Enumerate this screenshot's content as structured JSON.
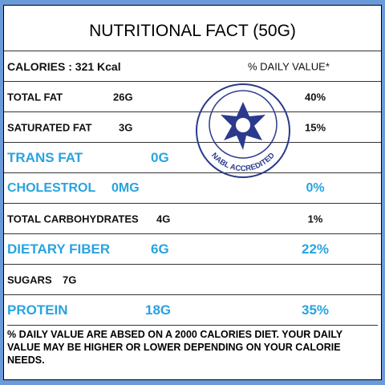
{
  "title": "NUTRITIONAL FACT (50G)",
  "header": {
    "calories": "CALORIES : 321 Kcal",
    "daily_value_heading": "% DAILY VALUE*"
  },
  "rows": [
    {
      "name": "TOTAL FAT",
      "amount": "26G",
      "daily_value": "40%"
    },
    {
      "name": "SATURATED FAT",
      "amount": "3G",
      "daily_value": "15%"
    },
    {
      "name": "TRANS FAT",
      "amount": "0G"
    },
    {
      "name": "CHOLESTROL",
      "amount": "0MG",
      "daily_value": "0%"
    },
    {
      "name": "TOTAL CARBOHYDRATES",
      "amount": "4G",
      "daily_value": "1%"
    },
    {
      "name": "DIETARY FIBER",
      "amount": "6G",
      "daily_value": "22%"
    },
    {
      "name": "SUGARS",
      "amount": "7G"
    },
    {
      "name": "PROTEIN",
      "amount": "18G",
      "daily_value": "35%"
    }
  ],
  "footnote": "% DAILY VALUE ARE ABSED ON A 2000 CALORIES DIET. YOUR DAILY VALUE MAY BE HIGHER OR LOWER DEPENDING ON YOUR CALORIE NEEDS.",
  "seal": {
    "text": "NABL ACCREDITED"
  }
}
